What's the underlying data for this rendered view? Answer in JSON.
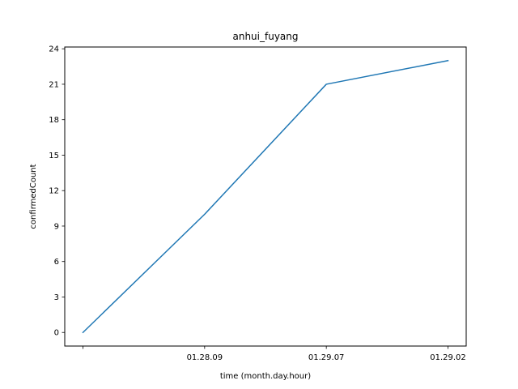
{
  "chart_data": {
    "type": "line",
    "title": "anhui_fuyang",
    "xlabel": "time (month.day.hour)",
    "ylabel": "confirmedCount",
    "categories": [
      "",
      "01.28.09",
      "01.29.07",
      "01.29.02"
    ],
    "series": [
      {
        "values": [
          0,
          10,
          21,
          23
        ],
        "color": "#1f77b4"
      }
    ],
    "ylim": [
      -1.15,
      24.15
    ],
    "yticks": [
      0,
      3,
      6,
      9,
      12,
      15,
      18,
      21,
      24
    ],
    "grid": false,
    "legend": "none"
  }
}
